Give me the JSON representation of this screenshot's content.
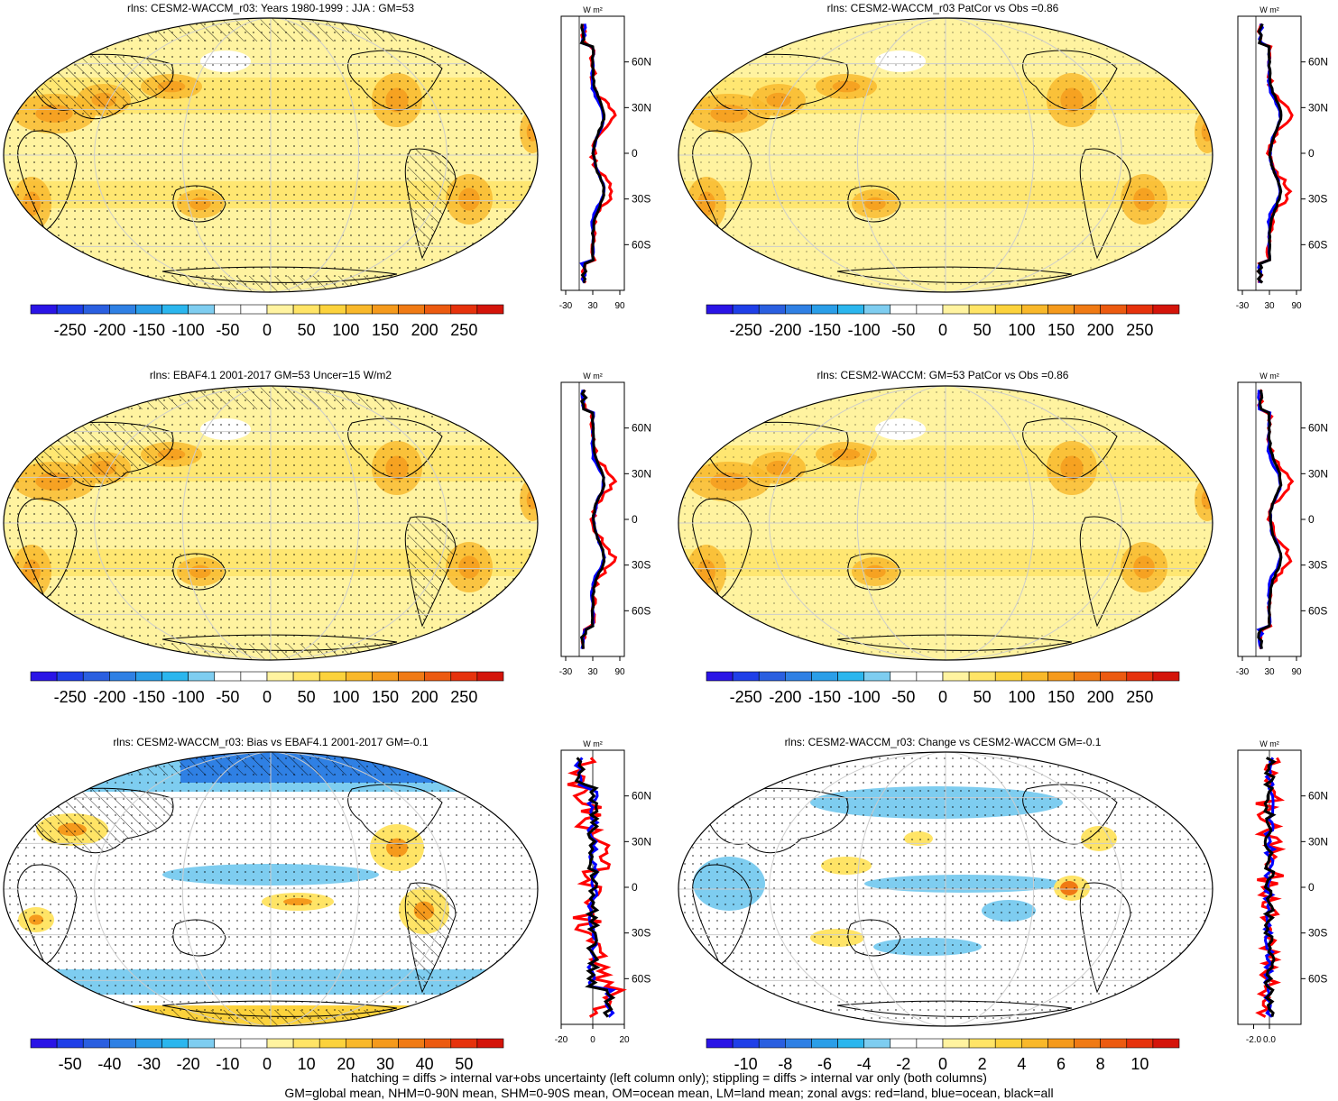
{
  "panels": [
    {
      "title": "rlns: CESM2-WACCM_r03: Years 1980-1999 : JJA : GM=53",
      "map_style": "full",
      "hatch": true,
      "colorbar": {
        "labels": [
          "-250",
          "-200",
          "-150",
          "-100",
          "-50",
          "0",
          "50",
          "100",
          "150",
          "200",
          "250"
        ]
      },
      "zonal": {
        "unit": "W m²",
        "x_ticks": [
          "-30",
          "30",
          "90"
        ],
        "x_range": [
          -40,
          100
        ],
        "lat_labels": [
          "60N",
          "30N",
          "0",
          "30S",
          "60S"
        ]
      }
    },
    {
      "title": "rlns: CESM2-WACCM_r03 PatCor vs Obs =0.86",
      "map_style": "full",
      "hatch": false,
      "colorbar": {
        "labels": [
          "-250",
          "-200",
          "-150",
          "-100",
          "-50",
          "0",
          "50",
          "100",
          "150",
          "200",
          "250"
        ]
      },
      "zonal": {
        "unit": "W m²",
        "x_ticks": [
          "-30",
          "30",
          "90"
        ],
        "x_range": [
          -40,
          100
        ],
        "lat_labels": [
          "60N",
          "30N",
          "0",
          "30S",
          "60S"
        ]
      }
    },
    {
      "title": "rlns: EBAF4.1 2001-2017 GM=53 Uncer=15 W/m2",
      "map_style": "full",
      "hatch": true,
      "colorbar": {
        "labels": [
          "-250",
          "-200",
          "-150",
          "-100",
          "-50",
          "0",
          "50",
          "100",
          "150",
          "200",
          "250"
        ]
      },
      "zonal": {
        "unit": "W m²",
        "x_ticks": [
          "-30",
          "30",
          "90"
        ],
        "x_range": [
          -40,
          100
        ],
        "lat_labels": [
          "60N",
          "30N",
          "0",
          "30S",
          "60S"
        ]
      }
    },
    {
      "title": "rlns: CESM2-WACCM: GM=53 PatCor vs Obs =0.86",
      "map_style": "full",
      "hatch": false,
      "colorbar": {
        "labels": [
          "-250",
          "-200",
          "-150",
          "-100",
          "-50",
          "0",
          "50",
          "100",
          "150",
          "200",
          "250"
        ]
      },
      "zonal": {
        "unit": "W m²",
        "x_ticks": [
          "-30",
          "30",
          "90"
        ],
        "x_range": [
          -40,
          100
        ],
        "lat_labels": [
          "60N",
          "30N",
          "0",
          "30S",
          "60S"
        ]
      }
    },
    {
      "title": "rlns: CESM2-WACCM_r03: Bias vs EBAF4.1 2001-2017 GM=-0.1",
      "map_style": "bias",
      "hatch": true,
      "colorbar": {
        "labels": [
          "-50",
          "-40",
          "-30",
          "-20",
          "-10",
          "0",
          "10",
          "20",
          "30",
          "40",
          "50"
        ]
      },
      "zonal": {
        "unit": "W m²",
        "x_ticks": [
          "-20",
          "0",
          "20"
        ],
        "x_range": [
          -20,
          20
        ],
        "lat_labels": [
          "60N",
          "30N",
          "0",
          "30S",
          "60S"
        ]
      }
    },
    {
      "title": "rlns: CESM2-WACCM_r03: Change vs CESM2-WACCM GM=-0.1",
      "map_style": "change",
      "hatch": false,
      "colorbar": {
        "labels": [
          "-10",
          "-8",
          "-6",
          "-4",
          "-2",
          "0",
          "2",
          "4",
          "6",
          "8",
          "10"
        ]
      },
      "zonal": {
        "unit": "W m²",
        "x_ticks": [
          "-2.0",
          "0.0"
        ],
        "x_range": [
          -4,
          4
        ],
        "lat_labels": [
          "60N",
          "30N",
          "0",
          "30S",
          "60S"
        ]
      }
    }
  ],
  "colors": {
    "scale": [
      "#2a14e6",
      "#1f3fe8",
      "#2a5fe0",
      "#2f80e4",
      "#2a9ee8",
      "#2bb6ee",
      "#7ecdf0",
      "#ffffff",
      "#ffffff",
      "#fff3a0",
      "#ffe466",
      "#fcd23c",
      "#f9b82a",
      "#f59a1c",
      "#f07a14",
      "#ec5a10",
      "#e6320c",
      "#d4140a"
    ],
    "land_line": "#ff0000",
    "ocean_line": "#0000ff",
    "all_line": "#000000"
  },
  "footer": {
    "line1": "hatching = diffs > internal var+obs uncertainty (left column only); stippling = diffs > internal var only (both columns)",
    "line2": "GM=global mean, NHM=0-90N mean, SHM=0-90S mean, OM=ocean mean, LM=land mean; zonal avgs: red=land, blue=ocean, black=all"
  }
}
